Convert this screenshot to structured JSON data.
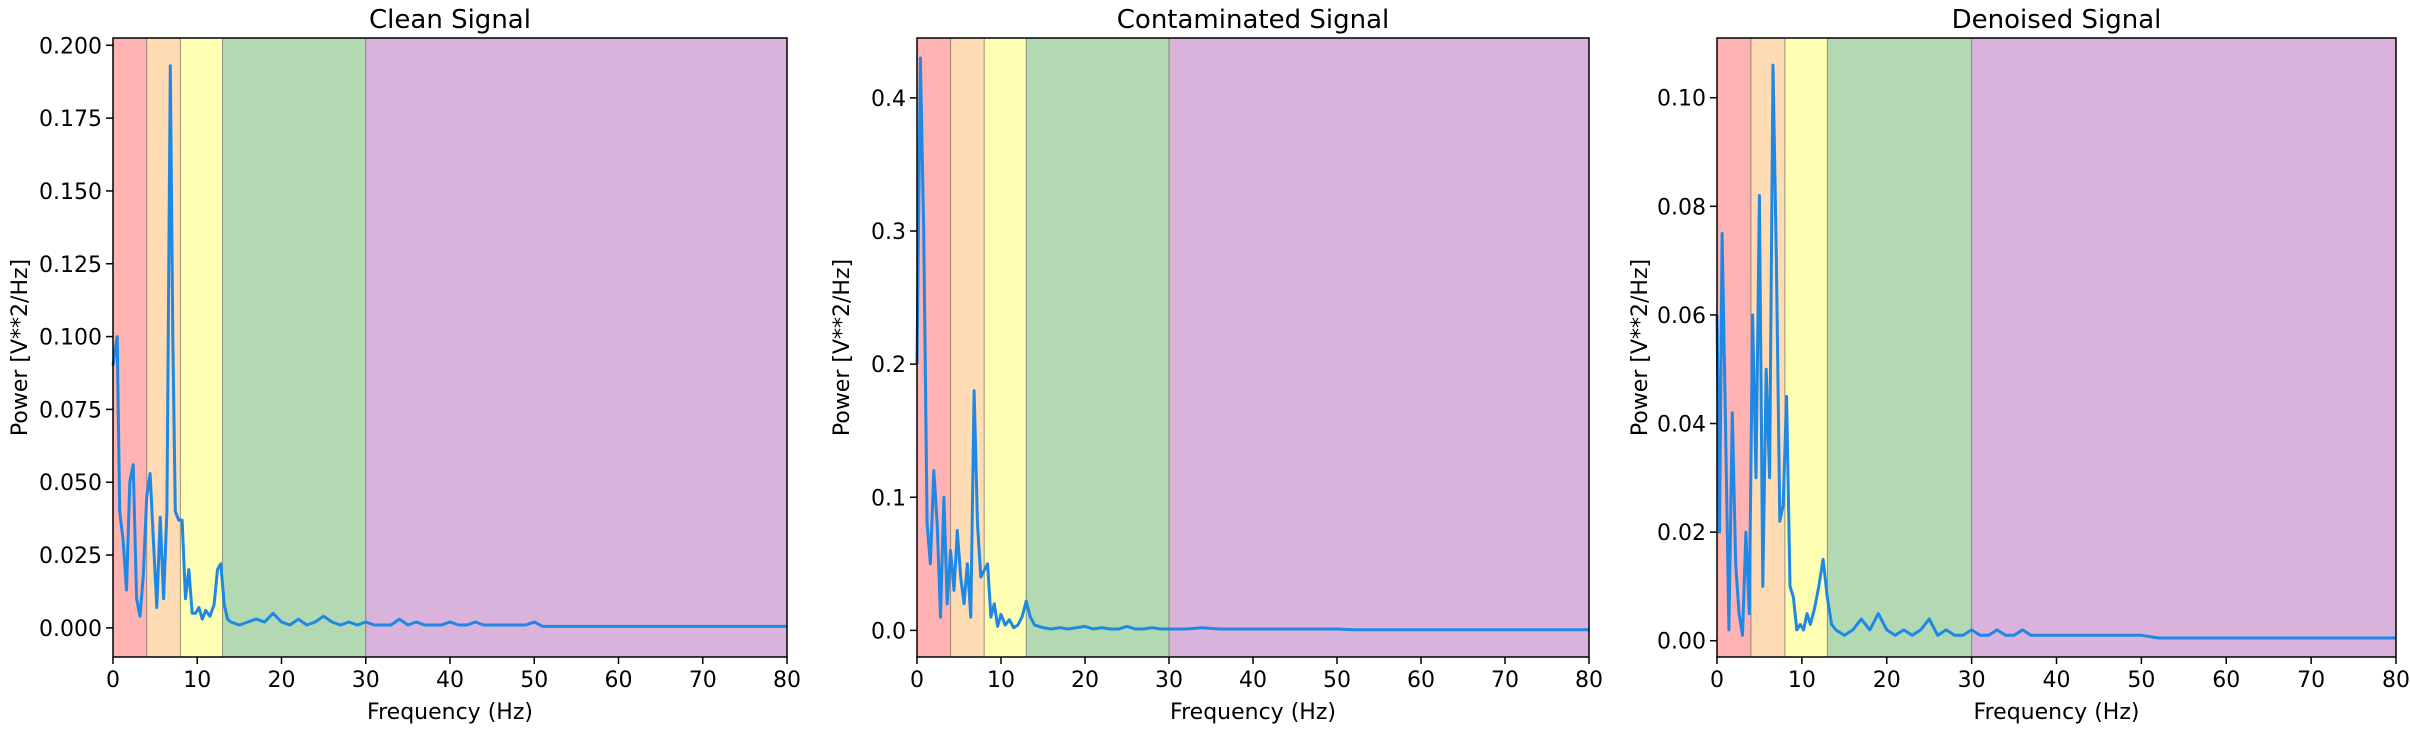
{
  "chart_data": [
    {
      "type": "line",
      "title": "Clean Signal",
      "xlabel": "Frequency (Hz)",
      "ylabel": "Power [V**2/Hz]",
      "xlim": [
        0,
        80
      ],
      "ylim": [
        -0.01,
        0.2025
      ],
      "xticks": [
        "0",
        "10",
        "20",
        "30",
        "40",
        "50",
        "60",
        "70",
        "80"
      ],
      "yticks": [
        "0.000",
        "0.025",
        "0.050",
        "0.075",
        "0.100",
        "0.125",
        "0.150",
        "0.175",
        "0.200"
      ],
      "bands": [
        {
          "range": [
            0,
            4
          ],
          "color": "#ffb3b3"
        },
        {
          "range": [
            4,
            8
          ],
          "color": "#ffdcb3"
        },
        {
          "range": [
            8,
            13
          ],
          "color": "#ffffb3"
        },
        {
          "range": [
            13,
            30
          ],
          "color": "#b3d9b3"
        },
        {
          "range": [
            30,
            80
          ],
          "color": "#d9b3dc"
        }
      ],
      "line_color": "#1e88e5",
      "series": [
        {
          "x": [
            0,
            0.5,
            0.8,
            1.2,
            1.6,
            2.0,
            2.4,
            2.8,
            3.2,
            3.6,
            4.0,
            4.4,
            4.8,
            5.2,
            5.6,
            6.0,
            6.4,
            6.8,
            7.1,
            7.4,
            7.8,
            8.2,
            8.6,
            9.0,
            9.4,
            9.8,
            10.2,
            10.6,
            11.0,
            11.5,
            12.0,
            12.4,
            12.8,
            13.2,
            13.6,
            14.0,
            15,
            16,
            17,
            18,
            19,
            20,
            21,
            22,
            23,
            24,
            25,
            26,
            27,
            28,
            29,
            30,
            31,
            32,
            33,
            34,
            35,
            36,
            37,
            38,
            39,
            40,
            41,
            42,
            43,
            44,
            45,
            46,
            47,
            48,
            49,
            50,
            51,
            52,
            60,
            70,
            80
          ],
          "y": [
            0.09,
            0.1,
            0.04,
            0.03,
            0.013,
            0.05,
            0.056,
            0.01,
            0.004,
            0.018,
            0.045,
            0.053,
            0.03,
            0.007,
            0.038,
            0.01,
            0.04,
            0.193,
            0.1,
            0.04,
            0.037,
            0.037,
            0.01,
            0.02,
            0.005,
            0.005,
            0.007,
            0.003,
            0.006,
            0.004,
            0.008,
            0.02,
            0.022,
            0.008,
            0.003,
            0.002,
            0.001,
            0.002,
            0.003,
            0.002,
            0.005,
            0.002,
            0.001,
            0.003,
            0.001,
            0.002,
            0.004,
            0.002,
            0.001,
            0.002,
            0.001,
            0.002,
            0.001,
            0.001,
            0.001,
            0.003,
            0.001,
            0.002,
            0.001,
            0.001,
            0.001,
            0.002,
            0.001,
            0.001,
            0.002,
            0.001,
            0.001,
            0.001,
            0.001,
            0.001,
            0.001,
            0.002,
            0.0005,
            0.0005,
            0.0005,
            0.0005,
            0.0005
          ]
        }
      ]
    },
    {
      "type": "line",
      "title": "Contaminated Signal",
      "xlabel": "Frequency (Hz)",
      "ylabel": "Power [V**2/Hz]",
      "xlim": [
        0,
        80
      ],
      "ylim": [
        -0.02,
        0.445
      ],
      "xticks": [
        "0",
        "10",
        "20",
        "30",
        "40",
        "50",
        "60",
        "70",
        "80"
      ],
      "yticks": [
        "0.0",
        "0.1",
        "0.2",
        "0.3",
        "0.4"
      ],
      "bands": [
        {
          "range": [
            0,
            4
          ],
          "color": "#ffb3b3"
        },
        {
          "range": [
            4,
            8
          ],
          "color": "#ffdcb3"
        },
        {
          "range": [
            8,
            13
          ],
          "color": "#ffffb3"
        },
        {
          "range": [
            13,
            30
          ],
          "color": "#b3d9b3"
        },
        {
          "range": [
            30,
            80
          ],
          "color": "#d9b3dc"
        }
      ],
      "line_color": "#1e88e5",
      "series": [
        {
          "x": [
            0,
            0.4,
            0.8,
            1.2,
            1.6,
            2.0,
            2.4,
            2.8,
            3.2,
            3.6,
            4.0,
            4.4,
            4.8,
            5.2,
            5.6,
            6.0,
            6.4,
            6.8,
            7.2,
            7.6,
            8.0,
            8.4,
            8.8,
            9.2,
            9.6,
            10.0,
            10.5,
            11.0,
            11.5,
            12.0,
            12.5,
            13.0,
            13.5,
            14.0,
            15,
            16,
            17,
            18,
            19,
            20,
            21,
            22,
            23,
            24,
            25,
            26,
            27,
            28,
            29,
            30,
            32,
            34,
            36,
            38,
            40,
            42,
            44,
            46,
            48,
            50,
            52,
            60,
            70,
            80
          ],
          "y": [
            0.2,
            0.43,
            0.3,
            0.08,
            0.05,
            0.12,
            0.08,
            0.01,
            0.1,
            0.02,
            0.06,
            0.03,
            0.075,
            0.04,
            0.02,
            0.05,
            0.01,
            0.18,
            0.08,
            0.04,
            0.045,
            0.05,
            0.01,
            0.02,
            0.003,
            0.012,
            0.004,
            0.008,
            0.002,
            0.004,
            0.01,
            0.022,
            0.01,
            0.004,
            0.002,
            0.001,
            0.002,
            0.001,
            0.002,
            0.003,
            0.001,
            0.002,
            0.001,
            0.001,
            0.003,
            0.001,
            0.001,
            0.002,
            0.001,
            0.001,
            0.001,
            0.002,
            0.001,
            0.001,
            0.001,
            0.001,
            0.001,
            0.001,
            0.001,
            0.001,
            0.0005,
            0.0005,
            0.0005,
            0.0005
          ]
        }
      ]
    },
    {
      "type": "line",
      "title": "Denoised Signal",
      "xlabel": "Frequency (Hz)",
      "ylabel": "Power [V**2/Hz]",
      "xlim": [
        0,
        80
      ],
      "ylim": [
        -0.003,
        0.111
      ],
      "xticks": [
        "0",
        "10",
        "20",
        "30",
        "40",
        "50",
        "60",
        "70",
        "80"
      ],
      "yticks": [
        "0.00",
        "0.02",
        "0.04",
        "0.06",
        "0.08",
        "0.10"
      ],
      "bands": [
        {
          "range": [
            0,
            4
          ],
          "color": "#ffb3b3"
        },
        {
          "range": [
            4,
            8
          ],
          "color": "#ffdcb3"
        },
        {
          "range": [
            8,
            13
          ],
          "color": "#ffffb3"
        },
        {
          "range": [
            13,
            30
          ],
          "color": "#b3d9b3"
        },
        {
          "range": [
            30,
            80
          ],
          "color": "#d9b3dc"
        }
      ],
      "line_color": "#1e88e5",
      "series": [
        {
          "x": [
            0,
            0.3,
            0.6,
            1.0,
            1.4,
            1.8,
            2.2,
            2.6,
            3.0,
            3.4,
            3.8,
            4.2,
            4.6,
            5.0,
            5.4,
            5.8,
            6.2,
            6.6,
            7.0,
            7.4,
            7.8,
            8.2,
            8.6,
            9.0,
            9.4,
            9.8,
            10.2,
            10.6,
            11.0,
            11.5,
            12.0,
            12.5,
            13.0,
            13.5,
            14.0,
            15,
            16,
            17,
            18,
            19,
            20,
            21,
            22,
            23,
            24,
            25,
            26,
            27,
            28,
            29,
            30,
            31,
            32,
            33,
            34,
            35,
            36,
            37,
            38,
            40,
            42,
            44,
            46,
            48,
            50,
            52,
            60,
            70,
            80
          ],
          "y": [
            0.06,
            0.02,
            0.075,
            0.04,
            0.002,
            0.042,
            0.014,
            0.005,
            0.001,
            0.02,
            0.005,
            0.06,
            0.03,
            0.082,
            0.01,
            0.05,
            0.03,
            0.106,
            0.07,
            0.022,
            0.025,
            0.045,
            0.01,
            0.008,
            0.002,
            0.003,
            0.002,
            0.005,
            0.003,
            0.006,
            0.01,
            0.015,
            0.008,
            0.003,
            0.002,
            0.001,
            0.002,
            0.004,
            0.002,
            0.005,
            0.002,
            0.001,
            0.002,
            0.001,
            0.002,
            0.004,
            0.001,
            0.002,
            0.001,
            0.001,
            0.002,
            0.001,
            0.001,
            0.002,
            0.001,
            0.001,
            0.002,
            0.001,
            0.001,
            0.001,
            0.001,
            0.001,
            0.001,
            0.001,
            0.001,
            0.0005,
            0.0005,
            0.0005,
            0.0005
          ]
        }
      ]
    }
  ]
}
